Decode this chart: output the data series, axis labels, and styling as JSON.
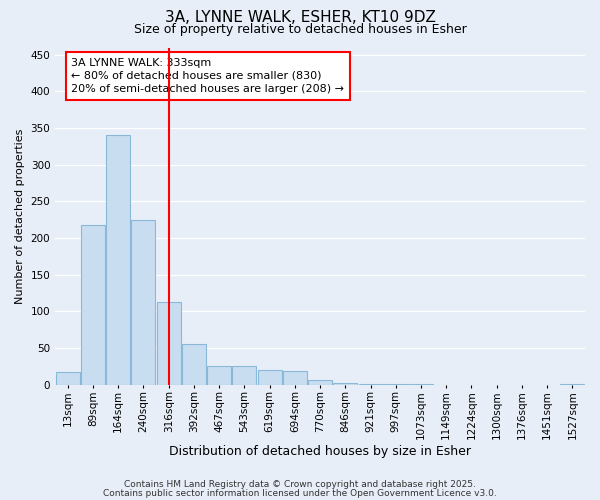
{
  "title_line1": "3A, LYNNE WALK, ESHER, KT10 9DZ",
  "title_line2": "Size of property relative to detached houses in Esher",
  "xlabel": "Distribution of detached houses by size in Esher",
  "ylabel": "Number of detached properties",
  "categories": [
    "13sqm",
    "89sqm",
    "164sqm",
    "240sqm",
    "316sqm",
    "392sqm",
    "467sqm",
    "543sqm",
    "619sqm",
    "694sqm",
    "770sqm",
    "846sqm",
    "921sqm",
    "997sqm",
    "1073sqm",
    "1149sqm",
    "1224sqm",
    "1300sqm",
    "1376sqm",
    "1451sqm",
    "1527sqm"
  ],
  "values": [
    17,
    218,
    340,
    224,
    113,
    55,
    26,
    25,
    20,
    19,
    7,
    2,
    1,
    1,
    1,
    0,
    0,
    0,
    0,
    0,
    1
  ],
  "bar_color": "#c8ddf0",
  "bar_edgecolor": "#8ab8d8",
  "redline_index": 4,
  "annotation_text": "3A LYNNE WALK: 333sqm\n← 80% of detached houses are smaller (830)\n20% of semi-detached houses are larger (208) →",
  "annotation_bbox_color": "white",
  "annotation_bbox_edgecolor": "red",
  "redline_color": "red",
  "ylim": [
    0,
    460
  ],
  "yticks": [
    0,
    50,
    100,
    150,
    200,
    250,
    300,
    350,
    400,
    450
  ],
  "footer_line1": "Contains HM Land Registry data © Crown copyright and database right 2025.",
  "footer_line2": "Contains public sector information licensed under the Open Government Licence v3.0.",
  "background_color": "#e8eef8",
  "grid_color": "white",
  "title_fontsize": 11,
  "subtitle_fontsize": 9,
  "xlabel_fontsize": 9,
  "ylabel_fontsize": 8,
  "tick_fontsize": 7.5,
  "annot_fontsize": 8,
  "footer_fontsize": 6.5
}
